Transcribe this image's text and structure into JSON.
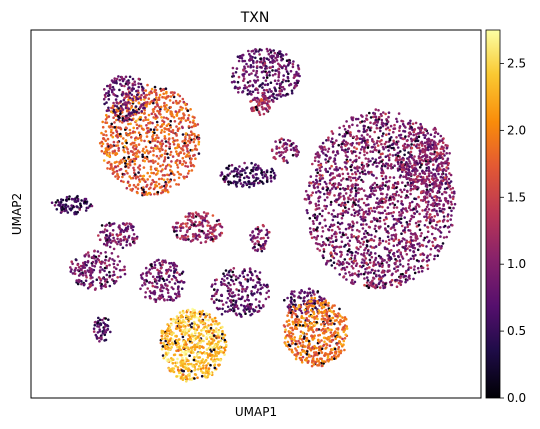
{
  "chart_data": {
    "type": "scatter",
    "title": "TXN",
    "xlabel": "UMAP1",
    "ylabel": "UMAP2",
    "x_ticks_shown": false,
    "y_ticks_shown": false,
    "grid": false,
    "legend": "none",
    "colormap": "inferno",
    "colorbar": {
      "range": [
        0.0,
        2.75
      ],
      "ticks": [
        0.0,
        0.5,
        1.0,
        1.5,
        2.0,
        2.5
      ],
      "tick_labels": [
        "0.0",
        "0.5",
        "1.0",
        "1.5",
        "2.0",
        "2.5"
      ]
    },
    "clusters": [
      {
        "id": "c1",
        "mean_expression": 1.75
      },
      {
        "id": "c2",
        "mean_expression": 0.8
      },
      {
        "id": "c3",
        "mean_expression": 0.55
      },
      {
        "id": "c4",
        "mean_expression": 1.0
      },
      {
        "id": "c5",
        "mean_expression": 0.5
      },
      {
        "id": "c6",
        "mean_expression": 1.0
      },
      {
        "id": "c7",
        "mean_expression": 1.2
      },
      {
        "id": "c8",
        "mean_expression": 1.0
      },
      {
        "id": "c9",
        "mean_expression": 0.9
      },
      {
        "id": "c10",
        "mean_expression": 0.9
      },
      {
        "id": "c11",
        "mean_expression": 0.85
      },
      {
        "id": "c12",
        "mean_expression": 0.8
      },
      {
        "id": "c13",
        "mean_expression": 0.65
      },
      {
        "id": "c14",
        "mean_expression": 0.8
      },
      {
        "id": "c15",
        "mean_expression": 1.0
      },
      {
        "id": "c16",
        "mean_expression": 2.35
      },
      {
        "id": "c17",
        "mean_expression": 1.9
      },
      {
        "id": "c18",
        "mean_expression": 0.8
      },
      {
        "id": "c19",
        "mean_expression": 1.3
      }
    ]
  }
}
